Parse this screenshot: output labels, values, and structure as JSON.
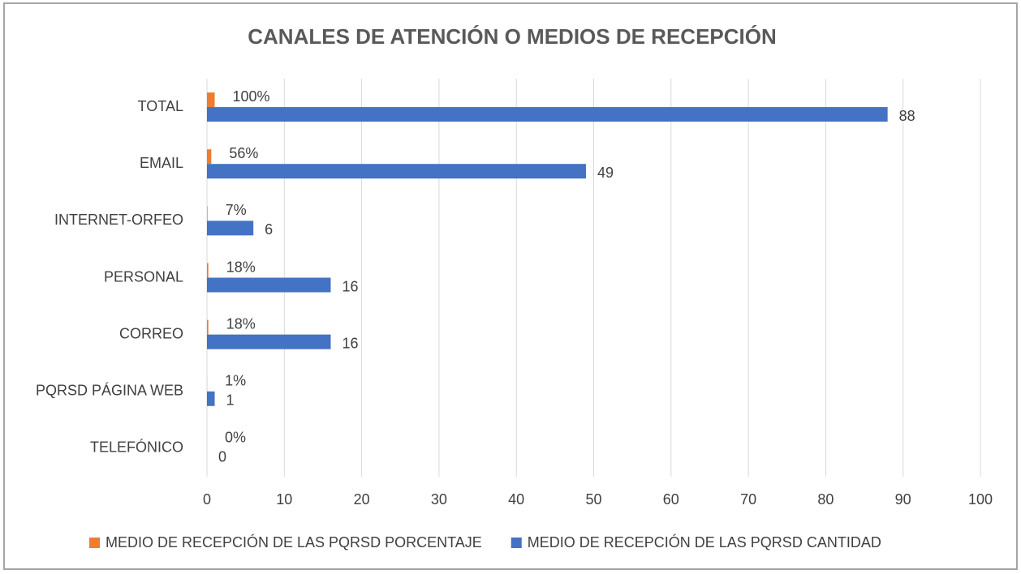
{
  "chart_data": {
    "type": "bar",
    "orientation": "horizontal",
    "title": "CANALES DE ATENCIÓN O MEDIOS DE RECEPCIÓN",
    "categories": [
      "TOTAL",
      "EMAIL",
      "INTERNET-ORFEO",
      "PERSONAL",
      "CORREO",
      "PQRSD PÁGINA WEB",
      "TELEFÓNICO"
    ],
    "series": [
      {
        "name": "MEDIO DE RECEPCIÓN DE LAS PQRSD PORCENTAJE",
        "color": "#ed7d31",
        "values": [
          1,
          0.56,
          0.07,
          0.18,
          0.18,
          0.01,
          0
        ],
        "value_labels": [
          "100%",
          "56%",
          "7%",
          "18%",
          "18%",
          "1%",
          "0%"
        ]
      },
      {
        "name": "MEDIO DE RECEPCIÓN DE LAS PQRSD CANTIDAD",
        "color": "#4472c4",
        "values": [
          88,
          49,
          6,
          16,
          16,
          1,
          0
        ]
      }
    ],
    "xlim": [
      0,
      100
    ],
    "xticks": [
      0,
      10,
      20,
      30,
      40,
      50,
      60,
      70,
      80,
      90,
      100
    ],
    "grid": true,
    "legend": "bottom"
  }
}
